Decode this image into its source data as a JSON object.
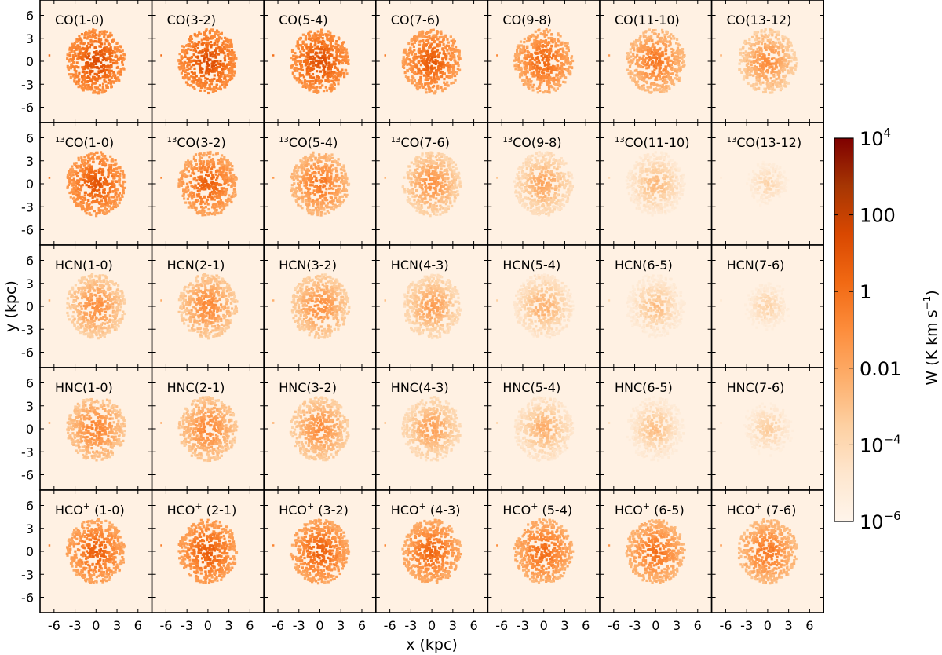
{
  "chart_data": {
    "type": "heatmap",
    "xlabel": "x (kpc)",
    "ylabel": "y (kpc)",
    "xlim": [
      -8,
      8
    ],
    "ylim": [
      -8,
      8
    ],
    "x_ticks": [
      -6,
      -3,
      0,
      3,
      6
    ],
    "y_ticks": [
      6,
      3,
      0,
      -3,
      -6
    ],
    "x_tick_labels": [
      "-6",
      "-3",
      "0",
      "3",
      "6"
    ],
    "y_tick_labels": [
      "6",
      "3",
      "0",
      "-3",
      "-6"
    ],
    "grid_rows": 5,
    "grid_cols": 7,
    "panels": [
      {
        "species": "CO",
        "sup": "",
        "transition": "(1-0)",
        "peak_log10_W": 1.6
      },
      {
        "species": "CO",
        "sup": "",
        "transition": "(3-2)",
        "peak_log10_W": 1.6
      },
      {
        "species": "CO",
        "sup": "",
        "transition": "(5-4)",
        "peak_log10_W": 1.5
      },
      {
        "species": "CO",
        "sup": "",
        "transition": "(7-6)",
        "peak_log10_W": 1.0
      },
      {
        "species": "CO",
        "sup": "",
        "transition": "(9-8)",
        "peak_log10_W": 0.6
      },
      {
        "species": "CO",
        "sup": "",
        "transition": "(11-10)",
        "peak_log10_W": 0.0
      },
      {
        "species": "CO",
        "sup": "",
        "transition": "(13-12)",
        "peak_log10_W": -0.8
      },
      {
        "species": "CO",
        "sup": "13",
        "transition": "(1-0)",
        "peak_log10_W": 1.2
      },
      {
        "species": "CO",
        "sup": "13",
        "transition": "(3-2)",
        "peak_log10_W": 0.8
      },
      {
        "species": "CO",
        "sup": "13",
        "transition": "(5-4)",
        "peak_log10_W": 0.0
      },
      {
        "species": "CO",
        "sup": "13",
        "transition": "(7-6)",
        "peak_log10_W": -1.0
      },
      {
        "species": "CO",
        "sup": "13",
        "transition": "(9-8)",
        "peak_log10_W": -1.6
      },
      {
        "species": "CO",
        "sup": "13",
        "transition": "(11-10)",
        "peak_log10_W": -2.4
      },
      {
        "species": "CO",
        "sup": "13",
        "transition": "(13-12)",
        "peak_log10_W": -3.6
      },
      {
        "species": "HCN",
        "sup": "",
        "transition": "(1-0)",
        "peak_log10_W": -0.8
      },
      {
        "species": "HCN",
        "sup": "",
        "transition": "(2-1)",
        "peak_log10_W": -0.6
      },
      {
        "species": "HCN",
        "sup": "",
        "transition": "(3-2)",
        "peak_log10_W": -0.8
      },
      {
        "species": "HCN",
        "sup": "",
        "transition": "(4-3)",
        "peak_log10_W": -1.4
      },
      {
        "species": "HCN",
        "sup": "",
        "transition": "(5-4)",
        "peak_log10_W": -2.0
      },
      {
        "species": "HCN",
        "sup": "",
        "transition": "(6-5)",
        "peak_log10_W": -2.6
      },
      {
        "species": "HCN",
        "sup": "",
        "transition": "(7-6)",
        "peak_log10_W": -3.4
      },
      {
        "species": "HNC",
        "sup": "",
        "transition": "(1-0)",
        "peak_log10_W": -0.4
      },
      {
        "species": "HNC",
        "sup": "",
        "transition": "(2-1)",
        "peak_log10_W": -0.5
      },
      {
        "species": "HNC",
        "sup": "",
        "transition": "(3-2)",
        "peak_log10_W": -0.8
      },
      {
        "species": "HNC",
        "sup": "",
        "transition": "(4-3)",
        "peak_log10_W": -1.4
      },
      {
        "species": "HNC",
        "sup": "",
        "transition": "(5-4)",
        "peak_log10_W": -2.0
      },
      {
        "species": "HNC",
        "sup": "",
        "transition": "(6-5)",
        "peak_log10_W": -2.6
      },
      {
        "species": "HNC",
        "sup": "",
        "transition": "(7-6)",
        "peak_log10_W": -3.2
      },
      {
        "species": "HCO",
        "sup": "+",
        "transition": " (1-0)",
        "peak_log10_W": 0.8
      },
      {
        "species": "HCO",
        "sup": "+",
        "transition": " (2-1)",
        "peak_log10_W": 1.0
      },
      {
        "species": "HCO",
        "sup": "+",
        "transition": " (3-2)",
        "peak_log10_W": 0.8
      },
      {
        "species": "HCO",
        "sup": "+",
        "transition": " (4-3)",
        "peak_log10_W": 0.6
      },
      {
        "species": "HCO",
        "sup": "+",
        "transition": " (5-4)",
        "peak_log10_W": 0.4
      },
      {
        "species": "HCO",
        "sup": "+",
        "transition": " (6-5)",
        "peak_log10_W": 0.2
      },
      {
        "species": "HCO",
        "sup": "+",
        "transition": " (7-6)",
        "peak_log10_W": 0.0
      }
    ],
    "colorbar": {
      "label_main": "W (K km s",
      "label_sup": "−1",
      "label_close": ")",
      "log10_range": [
        -6,
        4
      ],
      "ticks": [
        {
          "log10": 4,
          "base": "10",
          "sup": "4"
        },
        {
          "log10": 2,
          "base": "100",
          "sup": ""
        },
        {
          "log10": 0,
          "base": "1",
          "sup": ""
        },
        {
          "log10": -2,
          "base": "0.01",
          "sup": ""
        },
        {
          "log10": -4,
          "base": "10",
          "sup": "−4"
        },
        {
          "log10": -6,
          "base": "10",
          "sup": "−6"
        }
      ],
      "colors": [
        "#fff5eb",
        "#fee6ce",
        "#fdd0a2",
        "#fdae6b",
        "#fd8d3c",
        "#f16913",
        "#d94801",
        "#a63603",
        "#7f0000"
      ]
    }
  }
}
